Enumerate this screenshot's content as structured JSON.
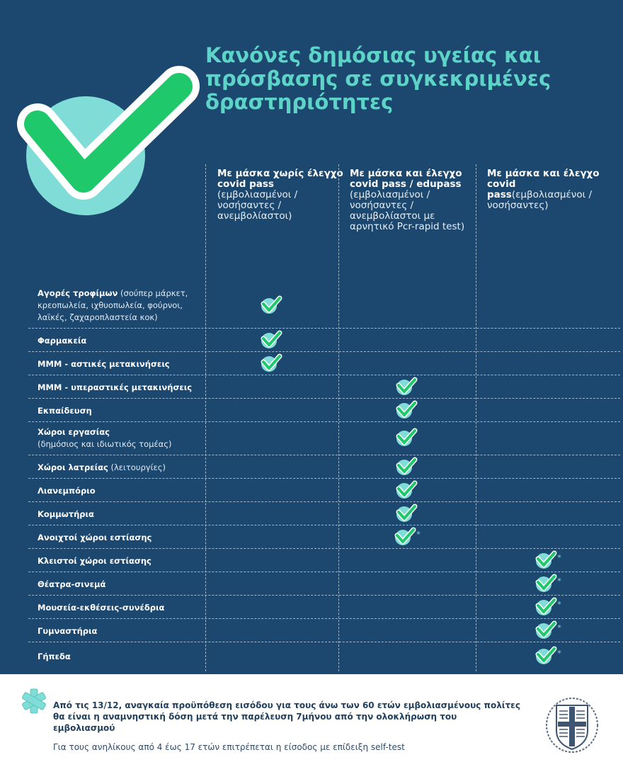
{
  "title": "Κανόνες δημόσιας υγείας και πρόσβασης σε συγκεκριμένες δραστηριότητες",
  "colors": {
    "background": "#1c4870",
    "title": "#5ed3c8",
    "check_green": "#1fc86a",
    "check_circle": "#7fdcd6"
  },
  "columns": [
    {
      "bold": "Με μάσκα χωρίς έλεγχο covid pass",
      "note": " (εμβολιασμένοι / νοσήσαντες / ανεμβολίαστοι)"
    },
    {
      "bold": "Με μάσκα και έλεγχο covid pass / edupass",
      "note": " (εμβολιασμένοι / νοσήσαντες / ανεμβολίαστοι με αρνητικό Pcr-rapid test)"
    },
    {
      "bold": "Με μάσκα και έλεγχο covid pass",
      "note": "(εμβολιασμένοι /νοσήσαντες)"
    }
  ],
  "rows": [
    {
      "label": "Αγορές τροφίμων",
      "note": " (σούπερ μάρκετ, κρεοπωλεία, ιχθυοπωλεία, φούρνοι, λαϊκές, ζαχαροπλαστεία κοκ)",
      "column": 1,
      "asterisk": ""
    },
    {
      "label": "Φαρμακεία",
      "note": "",
      "column": 1,
      "asterisk": ""
    },
    {
      "label": "ΜΜΜ - αστικές μετακινήσεις",
      "note": "",
      "column": 1,
      "asterisk": ""
    },
    {
      "label": "ΜΜΜ - υπεραστικές μετακινήσεις",
      "note": "",
      "column": 2,
      "asterisk": ""
    },
    {
      "label": "Εκπαίδευση",
      "note": "",
      "column": 2,
      "asterisk": ""
    },
    {
      "label": "Χώροι εργασίας",
      "note": "(δημόσιος και ιδιωτικός τομέας)",
      "column": 2,
      "asterisk": ""
    },
    {
      "label": "Χώροι λατρείας",
      "note": " (λειτουργίες)",
      "column": 2,
      "asterisk": ""
    },
    {
      "label": "Λιανεμπόριο",
      "note": "",
      "column": 2,
      "asterisk": ""
    },
    {
      "label": "Κομμωτήρια",
      "note": "",
      "column": 2,
      "asterisk": ""
    },
    {
      "label": "Ανοιχτοί χώροι εστίασης",
      "note": "",
      "column": 2,
      "asterisk": "*"
    },
    {
      "label": "Κλειστοί χώροι εστίασης",
      "note": "",
      "column": 3,
      "asterisk": "*"
    },
    {
      "label": "Θέατρα-σινεμά",
      "note": "",
      "column": 3,
      "asterisk": "*"
    },
    {
      "label": "Μουσεία-εκθέσεις-συνέδρια",
      "note": "",
      "column": 3,
      "asterisk": "*"
    },
    {
      "label": "Γυμναστήρια",
      "note": "",
      "column": 3,
      "asterisk": "*"
    },
    {
      "label": "Γήπεδα",
      "note": "",
      "column": 3,
      "asterisk": "*"
    }
  ],
  "footer": {
    "note1": "Από τις 13/12, αναγκαία προϋπόθεση εισόδου για τους άνω των 60 ετών εμβολιασμένους πολίτες θα είναι η αναμνηστική δόση μετά την παρέλευση 7μήνου από την ολοκλήρωση του εμβολιασμού",
    "note2": "Για τους ανηλίκους από 4 έως 17 ετών επιτρέπεται η είσοδος με επίδειξη self-test"
  }
}
